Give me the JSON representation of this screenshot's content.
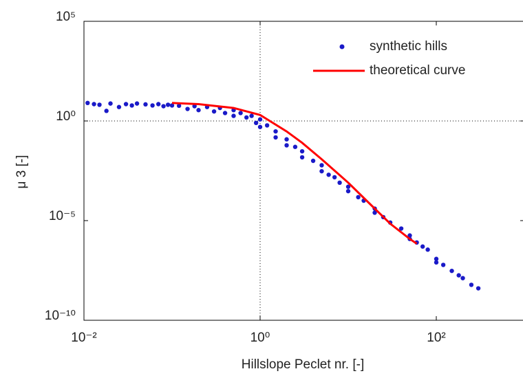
{
  "chart_data": {
    "type": "scatter",
    "x_label": "Hillslope Peclet nr. [-]",
    "y_label": "μ 3 [-]",
    "xscale": "log",
    "yscale": "log",
    "xlim": [
      0.01,
      1000
    ],
    "ylim": [
      1e-10,
      100000
    ],
    "xticks": [
      {
        "value": 0.01,
        "label": "10⁻²"
      },
      {
        "value": 1,
        "label": "10⁰"
      },
      {
        "value": 100,
        "label": "10²"
      }
    ],
    "yticks": [
      {
        "value": 1e-10,
        "label": "10⁻¹⁰"
      },
      {
        "value": 1e-05,
        "label": "10⁻⁵"
      },
      {
        "value": 1,
        "label": "10⁰"
      },
      {
        "value": 100000,
        "label": "10⁵"
      }
    ],
    "x_reference_lines": [
      1
    ],
    "y_reference_lines": [
      1
    ],
    "legend": "northeast",
    "series": [
      {
        "name": "synthetic hills",
        "mode": "markers",
        "color": "#1a1ac8",
        "x": [
          0.011,
          0.013,
          0.015,
          0.018,
          0.02,
          0.025,
          0.03,
          0.035,
          0.04,
          0.05,
          0.06,
          0.07,
          0.08,
          0.09,
          0.1,
          0.12,
          0.15,
          0.18,
          0.2,
          0.25,
          0.3,
          0.35,
          0.4,
          0.5,
          0.5,
          0.6,
          0.7,
          0.8,
          0.9,
          1,
          1,
          1.2,
          1.5,
          1.5,
          2,
          2,
          2.5,
          3,
          3,
          4,
          5,
          5,
          6,
          7,
          8,
          10,
          10,
          13,
          15,
          20,
          20,
          25,
          30,
          40,
          50,
          50,
          60,
          70,
          80,
          100,
          100,
          120,
          150,
          180,
          200,
          250,
          300
        ],
        "values": [
          8,
          7,
          6.5,
          3.2,
          7.5,
          5,
          7,
          6,
          7.5,
          6.8,
          6,
          7,
          5.5,
          6.5,
          6,
          5.8,
          4,
          5.5,
          3.5,
          5,
          3,
          4.5,
          2.5,
          3.5,
          1.8,
          2.5,
          1.5,
          1.8,
          0.8,
          1.2,
          0.5,
          0.6,
          0.3,
          0.15,
          0.12,
          0.06,
          0.05,
          0.03,
          0.015,
          0.01,
          0.006,
          0.003,
          0.002,
          0.0015,
          0.0008,
          0.0005,
          0.0003,
          0.00015,
          0.0001,
          4e-05,
          2.5e-05,
          1.5e-05,
          8e-06,
          4e-06,
          1.8e-06,
          1.2e-06,
          8e-07,
          5e-07,
          3.5e-07,
          1.2e-07,
          8e-08,
          6e-08,
          3e-08,
          1.8e-08,
          1.3e-08,
          6e-09,
          4e-09
        ]
      },
      {
        "name": "theoretical curve",
        "mode": "line",
        "color": "#ff0000",
        "x": [
          0.1,
          0.2,
          0.5,
          1,
          2,
          3,
          5,
          10,
          20,
          30,
          50,
          60
        ],
        "values": [
          8,
          7,
          4.5,
          2,
          0.3,
          0.08,
          0.012,
          0.0008,
          4e-05,
          7e-06,
          1.2e-06,
          7e-07
        ]
      }
    ]
  }
}
